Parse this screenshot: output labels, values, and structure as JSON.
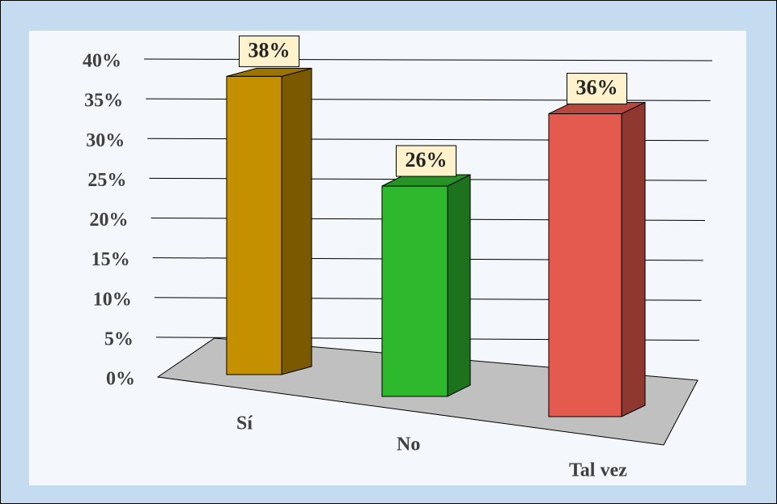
{
  "chart_data": {
    "type": "bar3d",
    "categories": [
      "Sí",
      "No",
      "Tal vez"
    ],
    "values": [
      38,
      26,
      36
    ],
    "value_labels": [
      "38%",
      "26%",
      "36%"
    ],
    "colors": [
      "#c49000",
      "#2eb82e",
      "#e55a4e"
    ],
    "ylim": [
      0,
      40
    ],
    "yticks": [
      {
        "value": 0,
        "label": "0%"
      },
      {
        "value": 5,
        "label": "5%"
      },
      {
        "value": 10,
        "label": "10%"
      },
      {
        "value": 15,
        "label": "15%"
      },
      {
        "value": 20,
        "label": "20%"
      },
      {
        "value": 25,
        "label": "25%"
      },
      {
        "value": 30,
        "label": "30%"
      },
      {
        "value": 35,
        "label": "35%"
      },
      {
        "value": 40,
        "label": "40%"
      }
    ],
    "grid": true
  }
}
